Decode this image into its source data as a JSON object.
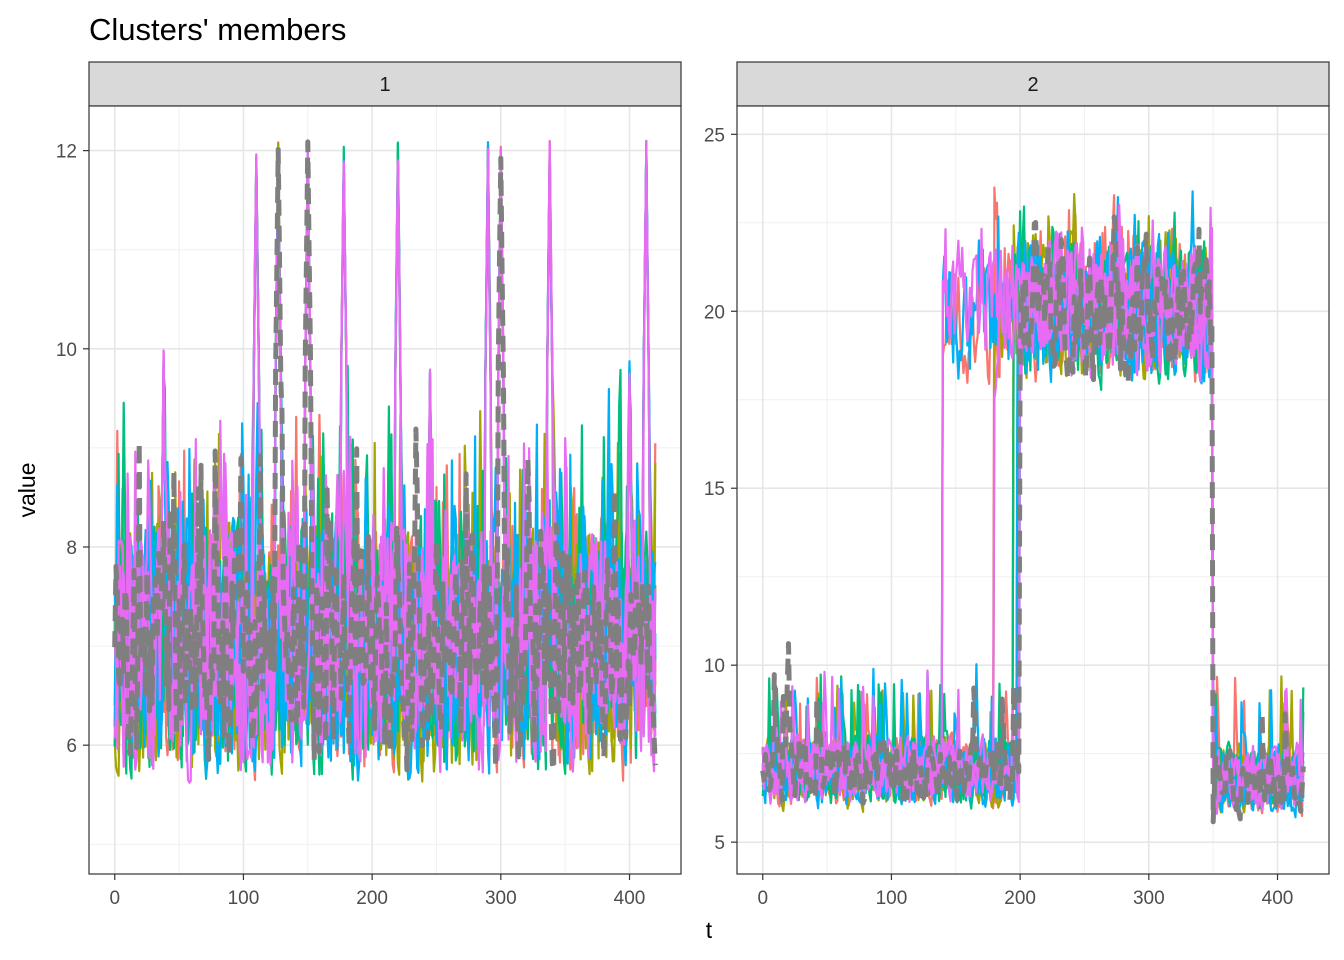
{
  "chart_data": {
    "type": "line",
    "title": "Clusters' members",
    "xlabel": "t",
    "ylabel": "value",
    "grid": true,
    "legend": "none",
    "colors": [
      "#F8766D",
      "#A3A500",
      "#00BF7D",
      "#00B0F6",
      "#E76BF3"
    ],
    "prototype_color": "#7F7F7F",
    "facets": [
      {
        "strip": "1",
        "xlim": [
          -20,
          440
        ],
        "ylim": [
          4.7,
          12.45
        ],
        "x_ticks": [
          0,
          100,
          200,
          300,
          400
        ],
        "x_tick_labels": [
          "0",
          "100",
          "200",
          "300",
          "400"
        ],
        "y_ticks": [
          6,
          8,
          10,
          12
        ],
        "y_tick_labels": [
          "6",
          "8",
          "10",
          "12"
        ],
        "n_points": 421,
        "baseline": 6.8,
        "amplitude": 1.5,
        "min": 5.0,
        "max": 12.1,
        "peaks": [
          {
            "t": 38,
            "v": 10.0
          },
          {
            "t": 110,
            "v": 12.1
          },
          {
            "t": 127,
            "v": 12.1
          },
          {
            "t": 150,
            "v": 12.1
          },
          {
            "t": 178,
            "v": 12.1
          },
          {
            "t": 220,
            "v": 12.1
          },
          {
            "t": 290,
            "v": 12.1
          },
          {
            "t": 300,
            "v": 12.1
          },
          {
            "t": 338,
            "v": 12.1
          },
          {
            "t": 413,
            "v": 12.1
          },
          {
            "t": 400,
            "v": 9.9
          },
          {
            "t": 245,
            "v": 9.8
          }
        ]
      },
      {
        "strip": "2",
        "xlim": [
          -20,
          440
        ],
        "ylim": [
          4.1,
          25.8
        ],
        "x_ticks": [
          0,
          100,
          200,
          300,
          400
        ],
        "x_tick_labels": [
          "0",
          "100",
          "200",
          "300",
          "400"
        ],
        "y_ticks": [
          5,
          10,
          15,
          20,
          25
        ],
        "y_tick_labels": [
          "5",
          "10",
          "15",
          "20",
          "25"
        ],
        "n_points": 421,
        "min": 5.0,
        "max": 24.8,
        "segments": [
          {
            "t_start": 0,
            "t_end": 200,
            "level": 7.0
          },
          {
            "t_start": 200,
            "t_end": 350,
            "level": 20.0
          },
          {
            "t_start": 350,
            "t_end": 420,
            "level": 6.8
          }
        ],
        "early_rise_t": [
          140,
          180,
          195,
          198,
          200
        ]
      }
    ]
  }
}
